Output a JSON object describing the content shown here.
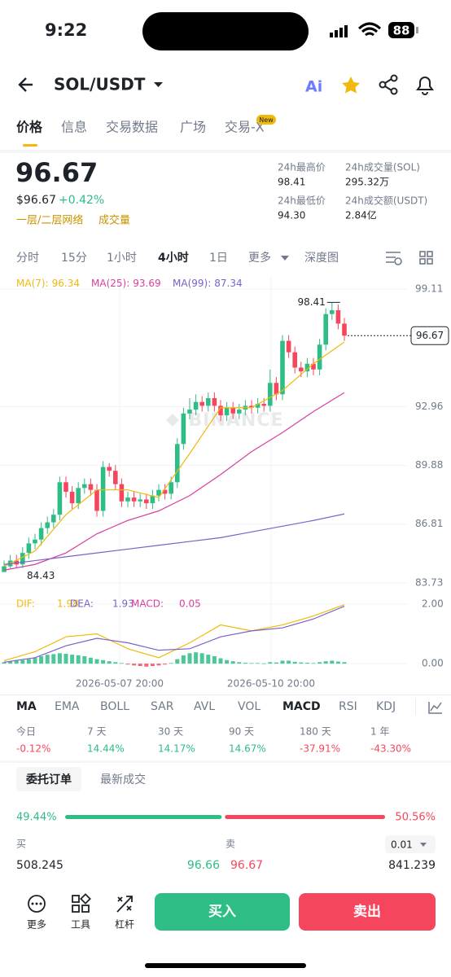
{
  "status": {
    "time": "9:22",
    "battery": "88"
  },
  "header": {
    "pair": "SOL/USDT",
    "ai": "Ai"
  },
  "tabs": [
    "价格",
    "信息",
    "交易数据",
    "广场",
    "交易-X"
  ],
  "new_badge": "New",
  "price": {
    "last": "96.67",
    "usd": "$96.67",
    "change": "+0.42%",
    "network": "一层/二层网络",
    "tag": "成交量"
  },
  "stats": [
    {
      "label": "24h最高价",
      "value": "98.41"
    },
    {
      "label": "24h成交量(SOL)",
      "value": "295.32万"
    },
    {
      "label": "24h最低价",
      "value": "94.30"
    },
    {
      "label": "24h成交额(USDT)",
      "value": "2.84亿"
    }
  ],
  "intervals": [
    "分时",
    "15分",
    "1小时",
    "4小时",
    "1日",
    "更多",
    "深度图"
  ],
  "chart_data": {
    "type": "candlestick",
    "watermark": "BINANCE",
    "up_color": "#2ebd85",
    "down_color": "#f6465d",
    "ylim": [
      83.73,
      99.11
    ],
    "yticks": [
      83.73,
      86.81,
      89.88,
      92.96,
      99.11
    ],
    "x_labels": [
      "2026-05-07 20:00",
      "2026-05-10 20:00"
    ],
    "open": [
      84.3,
      84.6,
      84.9,
      84.7,
      85.3,
      85.8,
      86.0,
      86.6,
      86.9,
      87.3,
      89.0,
      88.5,
      87.9,
      88.7,
      88.9,
      88.6,
      87.5,
      89.8,
      89.6,
      88.9,
      88.0,
      88.2,
      88.0,
      88.1,
      87.9,
      88.3,
      88.6,
      88.4,
      89.0,
      91.0,
      92.6,
      92.8,
      93.2,
      93.0,
      93.4,
      93.0,
      92.5,
      92.9,
      92.6,
      92.8,
      93.0,
      92.9,
      93.1,
      93.0,
      94.2,
      93.6,
      96.4,
      95.8,
      95.0,
      94.8,
      95.2,
      94.9,
      96.2,
      97.8,
      98.0,
      97.3
    ],
    "high": [
      84.9,
      85.2,
      85.2,
      85.6,
      86.1,
      86.3,
      86.9,
      87.2,
      87.6,
      89.3,
      89.3,
      88.8,
      89.0,
      89.2,
      89.2,
      88.9,
      90.1,
      90.0,
      89.9,
      89.2,
      88.5,
      88.5,
      88.4,
      88.4,
      88.6,
      88.9,
      88.9,
      89.3,
      91.3,
      92.9,
      93.4,
      93.6,
      93.5,
      93.7,
      93.7,
      93.3,
      93.2,
      93.2,
      93.1,
      93.3,
      93.3,
      93.4,
      93.4,
      94.9,
      94.5,
      96.7,
      96.7,
      96.1,
      95.3,
      95.5,
      95.5,
      96.5,
      98.1,
      98.41,
      98.3,
      97.6
    ],
    "low": [
      84.43,
      84.5,
      84.5,
      84.5,
      85.0,
      85.5,
      85.7,
      86.3,
      86.6,
      87.0,
      88.2,
      87.6,
      87.6,
      88.4,
      88.3,
      87.2,
      87.2,
      89.3,
      88.6,
      87.7,
      87.7,
      87.7,
      87.7,
      87.6,
      87.6,
      88.0,
      88.1,
      88.1,
      88.7,
      90.7,
      92.3,
      92.5,
      92.7,
      92.7,
      92.7,
      92.2,
      92.2,
      92.3,
      92.3,
      92.5,
      92.6,
      92.6,
      92.7,
      92.7,
      93.3,
      93.3,
      95.5,
      94.7,
      94.5,
      94.5,
      94.6,
      94.6,
      95.9,
      97.5,
      97.0,
      96.4
    ],
    "close": [
      84.6,
      84.9,
      84.7,
      85.3,
      85.8,
      86.0,
      86.6,
      86.9,
      87.3,
      89.0,
      88.5,
      87.9,
      88.7,
      88.9,
      88.6,
      87.5,
      89.8,
      89.6,
      88.9,
      88.0,
      88.2,
      88.0,
      88.1,
      87.9,
      88.3,
      88.6,
      88.4,
      89.0,
      91.0,
      92.6,
      92.8,
      93.2,
      93.0,
      93.4,
      93.0,
      92.5,
      92.9,
      92.6,
      92.8,
      93.0,
      92.9,
      93.1,
      93.0,
      94.2,
      93.6,
      96.4,
      95.8,
      95.0,
      94.8,
      95.2,
      94.9,
      96.2,
      97.8,
      98.0,
      97.3,
      96.67
    ],
    "ma": [
      {
        "name": "MA(7):",
        "color": "#f0b90b",
        "values": [
          84.6,
          85.4,
          87.3,
          88.6,
          88.6,
          88.2,
          90.5,
          92.9,
          92.9,
          93.8,
          95.2,
          96.34
        ]
      },
      {
        "name": "MA(25):",
        "color": "#d8409f",
        "values": [
          84.4,
          84.7,
          85.3,
          86.3,
          87.0,
          87.5,
          88.3,
          89.4,
          90.6,
          91.6,
          92.7,
          93.69
        ]
      },
      {
        "name": "MA(99):",
        "color": "#7b61c9",
        "values": [
          84.7,
          84.9,
          85.1,
          85.3,
          85.5,
          85.7,
          85.9,
          86.1,
          86.4,
          86.7,
          87.0,
          87.34
        ]
      }
    ],
    "macd": {
      "ylim": [
        -0.27,
        2.19
      ],
      "yticks": [
        {
          "value": 0,
          "label": "0.00"
        },
        {
          "value": 2,
          "label": "2.00"
        }
      ],
      "series": [
        {
          "name": "DIF:",
          "color": "#f0b90b",
          "values": [
            0.1,
            0.4,
            0.9,
            1.0,
            0.5,
            0.2,
            0.7,
            1.3,
            1.1,
            1.3,
            1.6,
            1.98
          ]
        },
        {
          "name": "DEA:",
          "color": "#7b61c9",
          "values": [
            0.05,
            0.2,
            0.6,
            0.85,
            0.7,
            0.45,
            0.5,
            0.9,
            1.1,
            1.2,
            1.5,
            1.93
          ]
        }
      ],
      "histogram": {
        "name": "MACD:",
        "values": [
          0.05,
          0.08,
          0.1,
          0.12,
          0.15,
          0.2,
          0.25,
          0.3,
          0.32,
          0.35,
          0.33,
          0.3,
          0.28,
          0.25,
          0.2,
          0.15,
          0.12,
          0.08,
          0.05,
          0.02,
          -0.03,
          -0.06,
          -0.08,
          -0.1,
          -0.08,
          -0.06,
          -0.03,
          0.02,
          0.15,
          0.28,
          0.35,
          0.38,
          0.35,
          0.3,
          0.25,
          0.18,
          0.12,
          0.08,
          0.05,
          0.03,
          0.02,
          0.02,
          0.01,
          0.05,
          0.04,
          0.1,
          0.1,
          0.06,
          0.04,
          0.03,
          0.02,
          0.05,
          0.08,
          0.1,
          0.07,
          0.05
        ]
      }
    }
  },
  "indicators": [
    "MA",
    "EMA",
    "BOLL",
    "SAR",
    "AVL",
    "VOL",
    "MACD",
    "RSI",
    "KDJ"
  ],
  "periods": [
    {
      "label": "今日",
      "value": "-0.12%"
    },
    {
      "label": "7 天",
      "value": "14.44%"
    },
    {
      "label": "30 天",
      "value": "14.17%"
    },
    {
      "label": "90 天",
      "value": "14.67%"
    },
    {
      "label": "180 天",
      "value": "-37.91%"
    },
    {
      "label": "1 年",
      "value": "-43.30%"
    }
  ],
  "orderbook": {
    "tabs": [
      "委托订单",
      "最新成交"
    ],
    "buy_ratio": {
      "value": 49.44,
      "label": "49.44%"
    },
    "sell_ratio": {
      "value": 50.56,
      "label": "50.56%"
    },
    "buy_label": "买",
    "sell_label": "卖",
    "step": "0.01",
    "row": {
      "buy_qty": "508.245",
      "buy_price": "96.66",
      "sell_price": "96.67",
      "sell_qty": "841.239"
    }
  },
  "bottom": {
    "more": "更多",
    "tools": "工具",
    "margin": "杠杆",
    "buy": "买入",
    "sell": "卖出"
  }
}
